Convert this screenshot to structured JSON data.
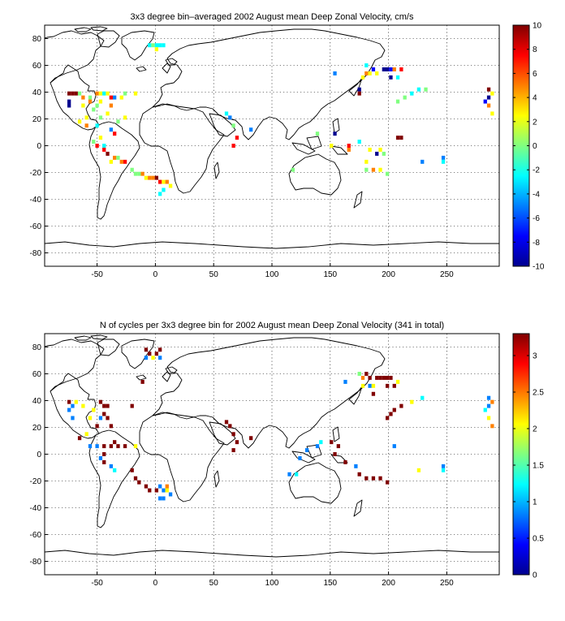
{
  "colors": {
    "jet": [
      "#00008f",
      "#0000ff",
      "#0080ff",
      "#00ffff",
      "#80ff80",
      "#ffff00",
      "#ff8000",
      "#ff0000",
      "#800000"
    ]
  },
  "chart_data": [
    {
      "type": "heatmap",
      "title": "3x3 degree bin–averaged 2002 August mean Deep Zonal Velocity, cm/s",
      "xlabel": "",
      "ylabel": "",
      "xlim": [
        -95,
        295
      ],
      "ylim": [
        -90,
        90
      ],
      "x_ticks": [
        "-50",
        "0",
        "50",
        "100",
        "150",
        "200",
        "250"
      ],
      "y_ticks": [
        "80",
        "60",
        "40",
        "20",
        "0",
        "-20",
        "-40",
        "-60",
        "-80"
      ],
      "grid": true,
      "colorbar": {
        "range": [
          -10,
          10
        ],
        "ticks": [
          "10",
          "8",
          "6",
          "4",
          "2",
          "0",
          "-2",
          "-4",
          "-6",
          "-8",
          "-10"
        ]
      },
      "cells": [
        [
          -5,
          75,
          -2
        ],
        [
          -2,
          75,
          -1
        ],
        [
          1,
          75,
          -2
        ],
        [
          4,
          75,
          -2
        ],
        [
          7,
          75,
          -2
        ],
        [
          1,
          72,
          2
        ],
        [
          -74,
          39,
          10
        ],
        [
          -71,
          39,
          8
        ],
        [
          -68,
          39,
          10
        ],
        [
          -65,
          39,
          1
        ],
        [
          -74,
          33,
          -8
        ],
        [
          -74,
          30,
          -9
        ],
        [
          -62,
          36,
          4
        ],
        [
          -56,
          36,
          1
        ],
        [
          -50,
          39,
          4
        ],
        [
          -47,
          39,
          3
        ],
        [
          -44,
          39,
          -3
        ],
        [
          -41,
          39,
          2
        ],
        [
          -38,
          36,
          6
        ],
        [
          -47,
          33,
          2
        ],
        [
          -50,
          30,
          -1
        ],
        [
          -53,
          27,
          1
        ],
        [
          -56,
          33,
          4
        ],
        [
          -62,
          30,
          2
        ],
        [
          -59,
          21,
          2
        ],
        [
          -65,
          18,
          2
        ],
        [
          -59,
          15,
          4
        ],
        [
          -50,
          15,
          -2
        ],
        [
          -35,
          36,
          -5
        ],
        [
          -29,
          36,
          2
        ],
        [
          -26,
          39,
          1
        ],
        [
          -17,
          39,
          2
        ],
        [
          -38,
          30,
          4
        ],
        [
          -41,
          24,
          3
        ],
        [
          -47,
          21,
          1
        ],
        [
          -32,
          18,
          1
        ],
        [
          -26,
          21,
          3
        ],
        [
          -38,
          12,
          -4
        ],
        [
          -35,
          9,
          6
        ],
        [
          -47,
          6,
          3
        ],
        [
          -53,
          3,
          -1
        ],
        [
          -50,
          0,
          6
        ],
        [
          -44,
          0,
          -2
        ],
        [
          -44,
          -3,
          7
        ],
        [
          -41,
          -6,
          9
        ],
        [
          -35,
          -9,
          4
        ],
        [
          -32,
          -9,
          1
        ],
        [
          -38,
          -12,
          2
        ],
        [
          -29,
          -12,
          4
        ],
        [
          -26,
          -12,
          7
        ],
        [
          -20,
          -18,
          1
        ],
        [
          -17,
          -21,
          0
        ],
        [
          -14,
          -21,
          1
        ],
        [
          -11,
          -21,
          4
        ],
        [
          -8,
          -24,
          3
        ],
        [
          -5,
          -24,
          5
        ],
        [
          -2,
          -24,
          4
        ],
        [
          1,
          -24,
          8
        ],
        [
          4,
          -27,
          7
        ],
        [
          7,
          -27,
          2
        ],
        [
          10,
          -27,
          4
        ],
        [
          7,
          -33,
          -3
        ],
        [
          4,
          -36,
          -2
        ],
        [
          13,
          -30,
          3
        ],
        [
          61,
          24,
          -3
        ],
        [
          64,
          21,
          -4
        ],
        [
          67,
          15,
          1
        ],
        [
          70,
          6,
          6
        ],
        [
          82,
          12,
          -5
        ],
        [
          67,
          0,
          7
        ],
        [
          139,
          9,
          -1
        ],
        [
          154,
          9,
          -8
        ],
        [
          151,
          0,
          2
        ],
        [
          166,
          -3,
          5
        ],
        [
          166,
          0,
          7
        ],
        [
          175,
          3,
          -2
        ],
        [
          184,
          -3,
          2
        ],
        [
          190,
          -6,
          -8
        ],
        [
          193,
          -3,
          2
        ],
        [
          196,
          -6,
          1
        ],
        [
          181,
          -18,
          0
        ],
        [
          187,
          -18,
          5
        ],
        [
          193,
          -18,
          3
        ],
        [
          199,
          -21,
          -1
        ],
        [
          208,
          6,
          9
        ],
        [
          211,
          6,
          9
        ],
        [
          229,
          -12,
          -4
        ],
        [
          247,
          -9,
          -4
        ],
        [
          247,
          -12,
          -2
        ],
        [
          208,
          33,
          -1
        ],
        [
          214,
          36,
          -1
        ],
        [
          220,
          39,
          -2
        ],
        [
          226,
          42,
          -2
        ],
        [
          232,
          42,
          0
        ],
        [
          181,
          60,
          -2
        ],
        [
          181,
          54,
          4
        ],
        [
          178,
          51,
          3
        ],
        [
          184,
          54,
          3
        ],
        [
          187,
          57,
          -6
        ],
        [
          190,
          54,
          2
        ],
        [
          196,
          57,
          -10
        ],
        [
          199,
          57,
          -9
        ],
        [
          202,
          57,
          -6
        ],
        [
          205,
          57,
          5
        ],
        [
          211,
          57,
          7
        ],
        [
          202,
          51,
          -8
        ],
        [
          208,
          51,
          -2
        ],
        [
          175,
          42,
          -8
        ],
        [
          175,
          39,
          10
        ],
        [
          286,
          42,
          10
        ],
        [
          289,
          39,
          3
        ],
        [
          286,
          36,
          -9
        ],
        [
          283,
          33,
          -6
        ],
        [
          286,
          30,
          4
        ],
        [
          289,
          24,
          2
        ],
        [
          154,
          54,
          -4
        ],
        [
          118,
          -18,
          0
        ],
        [
          181,
          -12,
          3
        ]
      ]
    },
    {
      "type": "heatmap",
      "title": "N of cycles per 3x3 degree bin for 2002 August mean Deep Zonal Velocity (341 in total)",
      "xlabel": "",
      "ylabel": "",
      "xlim": [
        -95,
        295
      ],
      "ylim": [
        -90,
        90
      ],
      "x_ticks": [
        "-50",
        "0",
        "50",
        "100",
        "150",
        "200",
        "250"
      ],
      "y_ticks": [
        "80",
        "60",
        "40",
        "20",
        "0",
        "-20",
        "-40",
        "-60",
        "-80"
      ],
      "grid": true,
      "colorbar": {
        "range": [
          0,
          3.3
        ],
        "ticks": [
          "3",
          "2.5",
          "2",
          "1.5",
          "1",
          "0.5",
          "0"
        ]
      },
      "cells": [
        [
          -8,
          78,
          3.3
        ],
        [
          -5,
          75,
          3.3
        ],
        [
          1,
          75,
          3.3
        ],
        [
          4,
          78,
          3.3
        ],
        [
          -2,
          72,
          2
        ],
        [
          4,
          72,
          1
        ],
        [
          -8,
          72,
          1
        ],
        [
          -11,
          54,
          3.3
        ],
        [
          -74,
          39,
          3.3
        ],
        [
          -71,
          36,
          1
        ],
        [
          -68,
          39,
          2
        ],
        [
          -74,
          33,
          1
        ],
        [
          -71,
          27,
          1
        ],
        [
          -62,
          36,
          2
        ],
        [
          -53,
          33,
          2
        ],
        [
          -47,
          39,
          3.3
        ],
        [
          -44,
          36,
          3.3
        ],
        [
          -41,
          36,
          3.3
        ],
        [
          -44,
          30,
          3.3
        ],
        [
          -41,
          27,
          3.3
        ],
        [
          -47,
          27,
          1
        ],
        [
          -50,
          21,
          3.3
        ],
        [
          -38,
          21,
          3.3
        ],
        [
          -56,
          27,
          2
        ],
        [
          -59,
          15,
          2
        ],
        [
          -65,
          12,
          3.3
        ],
        [
          -20,
          36,
          3.3
        ],
        [
          -56,
          6,
          1
        ],
        [
          -50,
          6,
          1
        ],
        [
          -44,
          6,
          3.3
        ],
        [
          -38,
          6,
          3.3
        ],
        [
          -35,
          9,
          3.3
        ],
        [
          -32,
          6,
          3.3
        ],
        [
          -26,
          6,
          3.3
        ],
        [
          -17,
          6,
          2
        ],
        [
          -44,
          0,
          3.3
        ],
        [
          -47,
          -3,
          1
        ],
        [
          -44,
          -6,
          3.3
        ],
        [
          -38,
          -9,
          1
        ],
        [
          -35,
          -12,
          1.3
        ],
        [
          -20,
          -12,
          3.3
        ],
        [
          -17,
          -18,
          3.3
        ],
        [
          -14,
          -21,
          3.3
        ],
        [
          -8,
          -24,
          3.3
        ],
        [
          -5,
          -27,
          3.3
        ],
        [
          1,
          -27,
          3.3
        ],
        [
          4,
          -24,
          1
        ],
        [
          7,
          -27,
          1
        ],
        [
          10,
          -27,
          2
        ],
        [
          4,
          -33,
          1
        ],
        [
          7,
          -33,
          1
        ],
        [
          13,
          -30,
          1
        ],
        [
          10,
          -24,
          2.5
        ],
        [
          61,
          24,
          3.3
        ],
        [
          64,
          21,
          3.3
        ],
        [
          67,
          15,
          3.3
        ],
        [
          70,
          9,
          3.3
        ],
        [
          67,
          3,
          3.3
        ],
        [
          82,
          12,
          3.3
        ],
        [
          139,
          6,
          1
        ],
        [
          142,
          9,
          1.3
        ],
        [
          151,
          9,
          3.3
        ],
        [
          157,
          6,
          3.3
        ],
        [
          154,
          0,
          3.3
        ],
        [
          163,
          -6,
          3.3
        ],
        [
          175,
          -15,
          3.3
        ],
        [
          181,
          -18,
          3.3
        ],
        [
          187,
          -18,
          3.3
        ],
        [
          193,
          -18,
          3.3
        ],
        [
          199,
          -21,
          3.3
        ],
        [
          172,
          -9,
          1
        ],
        [
          226,
          -12,
          2
        ],
        [
          247,
          -9,
          1
        ],
        [
          247,
          -12,
          1.3
        ],
        [
          205,
          6,
          1
        ],
        [
          199,
          27,
          3.3
        ],
        [
          202,
          30,
          3.3
        ],
        [
          205,
          33,
          3.3
        ],
        [
          211,
          36,
          3.3
        ],
        [
          220,
          39,
          2
        ],
        [
          229,
          42,
          1.3
        ],
        [
          175,
          60,
          1.5
        ],
        [
          178,
          57,
          2.5
        ],
        [
          181,
          60,
          3.3
        ],
        [
          184,
          57,
          3.3
        ],
        [
          190,
          57,
          3.3
        ],
        [
          193,
          57,
          3.3
        ],
        [
          196,
          57,
          3.3
        ],
        [
          199,
          57,
          3.3
        ],
        [
          202,
          57,
          3.3
        ],
        [
          208,
          54,
          2
        ],
        [
          178,
          51,
          2
        ],
        [
          184,
          51,
          1
        ],
        [
          187,
          51,
          2
        ],
        [
          199,
          51,
          3.3
        ],
        [
          205,
          51,
          3.3
        ],
        [
          187,
          45,
          3.3
        ],
        [
          286,
          42,
          1
        ],
        [
          289,
          39,
          2.5
        ],
        [
          286,
          36,
          1
        ],
        [
          283,
          33,
          1.3
        ],
        [
          286,
          27,
          2
        ],
        [
          289,
          21,
          2.5
        ],
        [
          163,
          54,
          1
        ],
        [
          115,
          -15,
          1
        ],
        [
          121,
          -15,
          1.3
        ],
        [
          124,
          -3,
          1
        ],
        [
          130,
          3,
          1
        ]
      ]
    }
  ]
}
